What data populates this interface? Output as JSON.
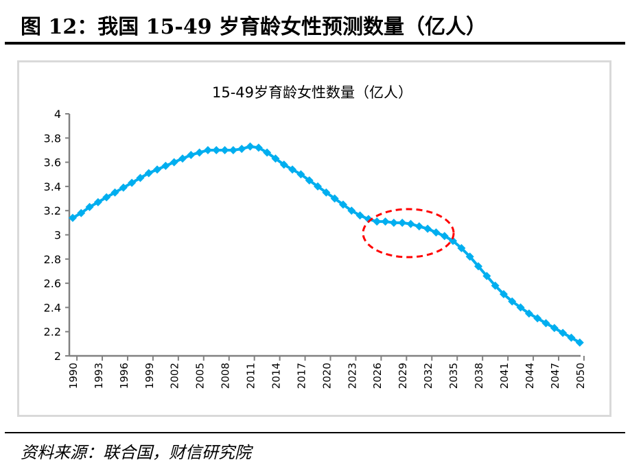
{
  "figure_title": "图 12：我国 15-49 岁育龄女性预测数量（亿人）",
  "source": "资料来源：联合国，财信研究院",
  "chart_data": {
    "type": "line",
    "title": "15-49岁育龄女性数量（亿人）",
    "xlabel": "",
    "ylabel": "",
    "ylim": [
      2,
      4
    ],
    "yticks": [
      "2",
      "2.2",
      "2.4",
      "2.6",
      "2.8",
      "3",
      "3.2",
      "3.4",
      "3.6",
      "3.8",
      "4"
    ],
    "xticks": [
      "1990",
      "1993",
      "1996",
      "1999",
      "2002",
      "2005",
      "2008",
      "2011",
      "2014",
      "2017",
      "2020",
      "2023",
      "2026",
      "2029",
      "2032",
      "2035",
      "2038",
      "2041",
      "2044",
      "2047",
      "2050"
    ],
    "grid": false,
    "legend": "none",
    "marker": "diamond",
    "color": "#00aeef",
    "annotation": {
      "type": "dashed-ellipse",
      "color": "#ff0000",
      "x_range": [
        2025,
        2035
      ]
    },
    "x": [
      1990,
      1991,
      1992,
      1993,
      1994,
      1995,
      1996,
      1997,
      1998,
      1999,
      2000,
      2001,
      2002,
      2003,
      2004,
      2005,
      2006,
      2007,
      2008,
      2009,
      2010,
      2011,
      2012,
      2013,
      2014,
      2015,
      2016,
      2017,
      2018,
      2019,
      2020,
      2021,
      2022,
      2023,
      2024,
      2025,
      2026,
      2027,
      2028,
      2029,
      2030,
      2031,
      2032,
      2033,
      2034,
      2035,
      2036,
      2037,
      2038,
      2039,
      2040,
      2041,
      2042,
      2043,
      2044,
      2045,
      2046,
      2047,
      2048,
      2049,
      2050
    ],
    "values": [
      3.14,
      3.18,
      3.23,
      3.27,
      3.31,
      3.35,
      3.39,
      3.43,
      3.47,
      3.51,
      3.54,
      3.57,
      3.6,
      3.63,
      3.66,
      3.68,
      3.7,
      3.7,
      3.7,
      3.7,
      3.71,
      3.73,
      3.72,
      3.68,
      3.63,
      3.58,
      3.54,
      3.5,
      3.45,
      3.4,
      3.35,
      3.3,
      3.25,
      3.2,
      3.16,
      3.13,
      3.11,
      3.11,
      3.1,
      3.1,
      3.09,
      3.07,
      3.05,
      3.02,
      2.99,
      2.95,
      2.89,
      2.82,
      2.74,
      2.66,
      2.58,
      2.51,
      2.45,
      2.4,
      2.35,
      2.31,
      2.27,
      2.23,
      2.19,
      2.15,
      2.11
    ]
  }
}
